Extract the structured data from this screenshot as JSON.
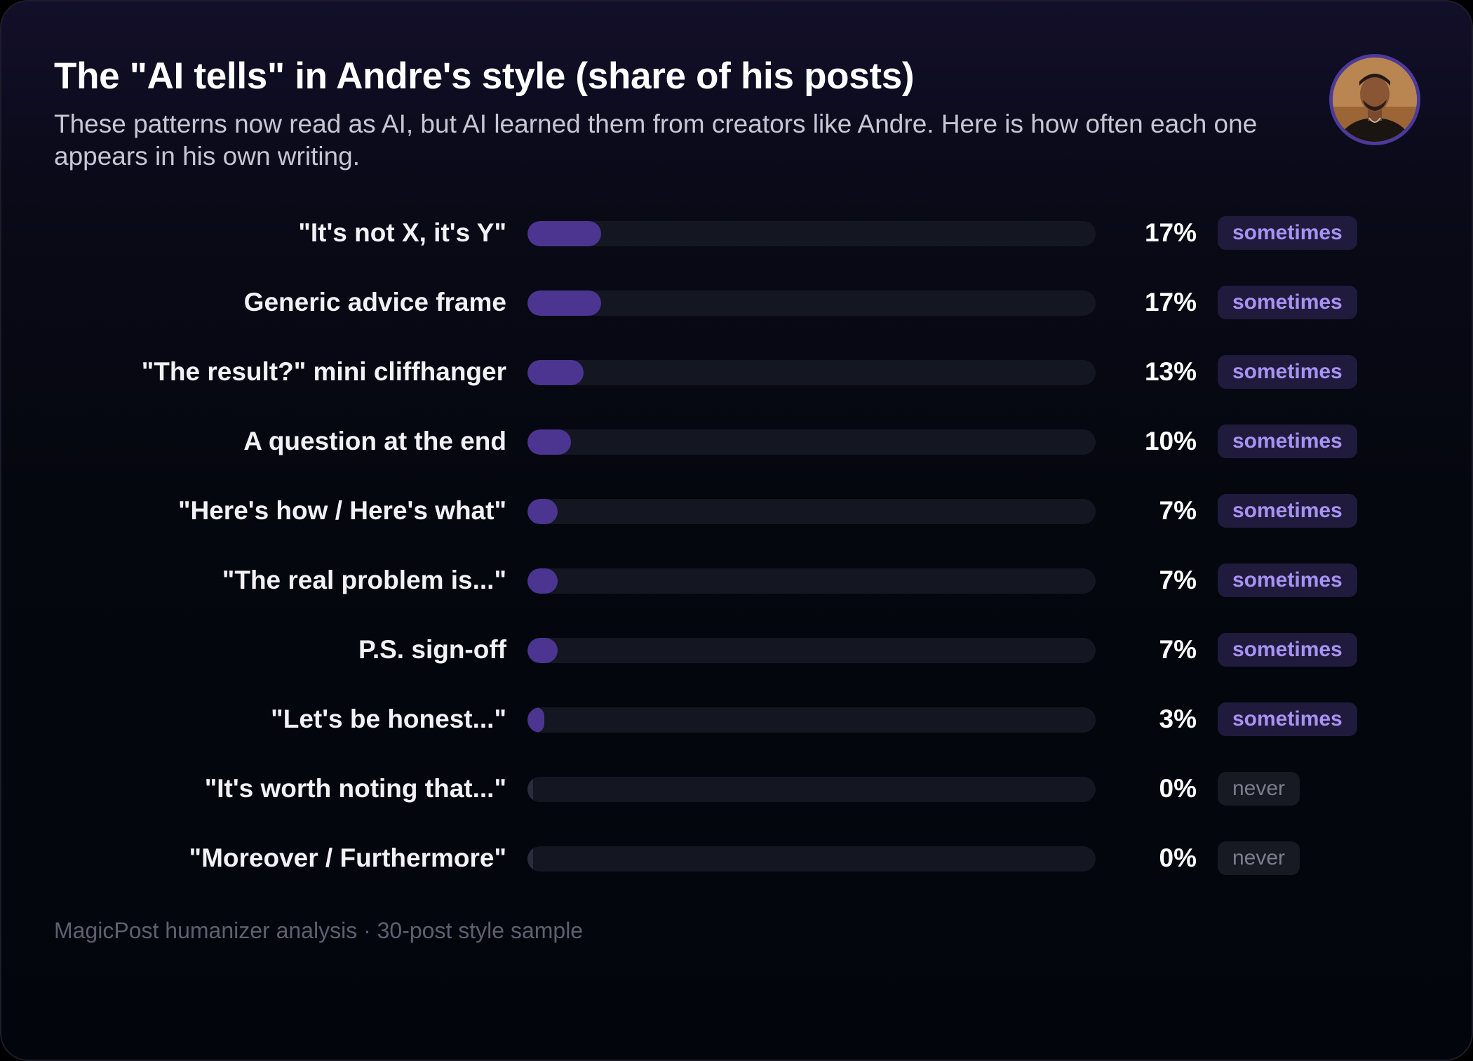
{
  "header": {
    "title": "The \"AI tells\" in Andre's style (share of his posts)",
    "subtitle": "These patterns now read as AI, but AI learned them from creators like Andre. Here is how often each one appears in his own writing."
  },
  "colors": {
    "bar_fill": "#4b3591",
    "track": "#141722",
    "badge_sometimes_text": "#a693f3",
    "badge_never_text": "#7c7e8b"
  },
  "footer": {
    "source": "MagicPost humanizer analysis · 30-post style sample"
  },
  "chart_data": {
    "type": "bar",
    "orientation": "horizontal",
    "title": "The \"AI tells\" in Andre's style (share of his posts)",
    "xlim": [
      0,
      100
    ],
    "unit": "%",
    "grid": false,
    "rows": [
      {
        "label": "\"It's not X, it's Y\"",
        "value": 17,
        "display": "17%",
        "badge": "sometimes"
      },
      {
        "label": "Generic advice frame",
        "value": 17,
        "display": "17%",
        "badge": "sometimes"
      },
      {
        "label": "\"The result?\" mini cliffhanger",
        "value": 13,
        "display": "13%",
        "badge": "sometimes"
      },
      {
        "label": "A question at the end",
        "value": 10,
        "display": "10%",
        "badge": "sometimes"
      },
      {
        "label": "\"Here's how / Here's what\"",
        "value": 7,
        "display": "7%",
        "badge": "sometimes"
      },
      {
        "label": "\"The real problem is...\"",
        "value": 7,
        "display": "7%",
        "badge": "sometimes"
      },
      {
        "label": "P.S. sign-off",
        "value": 7,
        "display": "7%",
        "badge": "sometimes"
      },
      {
        "label": "\"Let's be honest...\"",
        "value": 3,
        "display": "3%",
        "badge": "sometimes"
      },
      {
        "label": "\"It's worth noting that...\"",
        "value": 0,
        "display": "0%",
        "badge": "never"
      },
      {
        "label": "\"Moreover / Furthermore\"",
        "value": 0,
        "display": "0%",
        "badge": "never"
      }
    ]
  }
}
